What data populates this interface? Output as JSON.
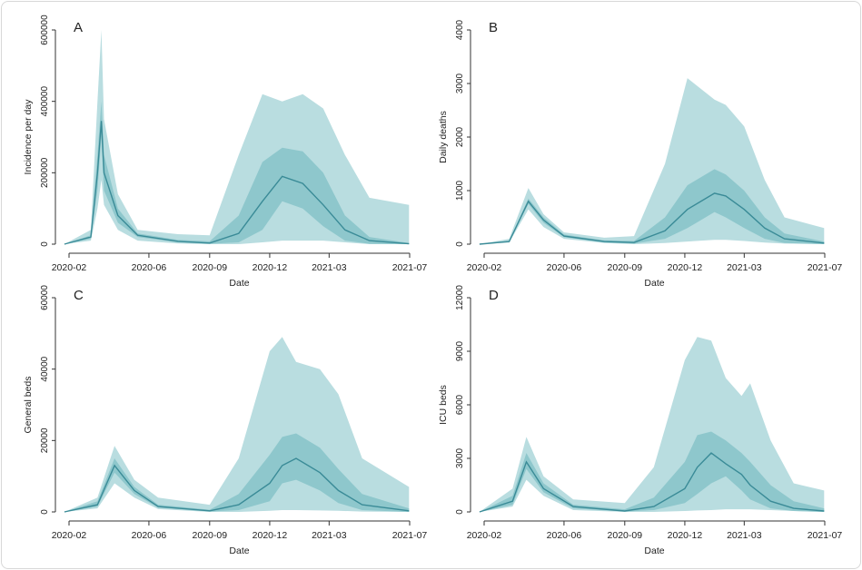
{
  "colors": {
    "band95": "#b9dde0",
    "band50": "#8ec7cc",
    "median": "#3a8b97",
    "axis": "#333333"
  },
  "chart_data": [
    {
      "type": "area",
      "panel_label": "A",
      "xlabel": "Date",
      "ylabel": "Incidence per day",
      "ylim": [
        0,
        600000
      ],
      "yticks": [
        "0",
        "200000",
        "400000",
        "600000"
      ],
      "ytick_values": [
        0,
        200000,
        400000,
        600000
      ],
      "xlim": [
        "2020-02-01",
        "2021-07-01"
      ],
      "xticks": [
        "2020-02",
        "2020-06",
        "2020-09",
        "2020-12",
        "2021-03",
        "2021-07"
      ],
      "grid": false,
      "series": {
        "date": [
          "2020-01-25",
          "2020-03-05",
          "2020-03-15",
          "2020-03-21",
          "2020-03-25",
          "2020-04-15",
          "2020-05-15",
          "2020-07-15",
          "2020-09-01",
          "2020-10-15",
          "2020-11-20",
          "2020-12-20",
          "2021-01-20",
          "2021-02-20",
          "2021-03-25",
          "2021-05-01",
          "2021-06-30"
        ],
        "median": [
          0,
          20000,
          200000,
          345000,
          200000,
          80000,
          25000,
          8000,
          3000,
          30000,
          120000,
          190000,
          170000,
          110000,
          40000,
          10000,
          1000
        ],
        "lo50": [
          0,
          15000,
          150000,
          300000,
          150000,
          60000,
          20000,
          5000,
          1000,
          5000,
          40000,
          120000,
          100000,
          50000,
          10000,
          1000,
          0
        ],
        "hi50": [
          0,
          25000,
          250000,
          400000,
          250000,
          100000,
          30000,
          12000,
          8000,
          80000,
          230000,
          270000,
          260000,
          200000,
          80000,
          20000,
          3000
        ],
        "lo95": [
          0,
          10000,
          100000,
          180000,
          110000,
          40000,
          10000,
          2000,
          0,
          0,
          5000,
          10000,
          10000,
          10000,
          5000,
          0,
          0
        ],
        "hi95": [
          0,
          40000,
          400000,
          600000,
          350000,
          140000,
          40000,
          28000,
          25000,
          250000,
          420000,
          400000,
          420000,
          380000,
          250000,
          130000,
          110000
        ]
      }
    },
    {
      "type": "area",
      "panel_label": "B",
      "xlabel": "Date",
      "ylabel": "Daily deaths",
      "ylim": [
        0,
        4000
      ],
      "yticks": [
        "0",
        "1000",
        "2000",
        "3000",
        "4000"
      ],
      "ytick_values": [
        0,
        1000,
        2000,
        3000,
        4000
      ],
      "xlim": [
        "2020-02-01",
        "2021-07-01"
      ],
      "xticks": [
        "2020-02",
        "2020-06",
        "2020-09",
        "2020-12",
        "2021-03",
        "2021-07"
      ],
      "grid": false,
      "series": {
        "date": [
          "2020-01-25",
          "2020-03-10",
          "2020-04-08",
          "2020-05-01",
          "2020-06-01",
          "2020-08-01",
          "2020-09-15",
          "2020-11-01",
          "2020-12-05",
          "2021-01-15",
          "2021-02-01",
          "2021-03-01",
          "2021-04-01",
          "2021-05-01",
          "2021-06-30"
        ],
        "median": [
          0,
          50,
          800,
          450,
          150,
          50,
          30,
          250,
          650,
          950,
          900,
          650,
          300,
          100,
          20
        ],
        "lo50": [
          0,
          40,
          750,
          400,
          130,
          30,
          10,
          100,
          300,
          600,
          500,
          300,
          100,
          20,
          0
        ],
        "hi50": [
          0,
          60,
          850,
          500,
          180,
          70,
          60,
          500,
          1100,
          1400,
          1300,
          1000,
          500,
          200,
          50
        ],
        "lo95": [
          0,
          30,
          650,
          320,
          100,
          20,
          0,
          20,
          50,
          80,
          80,
          60,
          30,
          10,
          0
        ],
        "hi95": [
          0,
          100,
          1050,
          560,
          220,
          120,
          150,
          1500,
          3100,
          2700,
          2600,
          2200,
          1200,
          500,
          300
        ]
      }
    },
    {
      "type": "area",
      "panel_label": "C",
      "xlabel": "Date",
      "ylabel": "General beds",
      "ylim": [
        0,
        60000
      ],
      "yticks": [
        "0",
        "20000",
        "40000",
        "60000"
      ],
      "ytick_values": [
        0,
        20000,
        40000,
        60000
      ],
      "xlim": [
        "2020-02-01",
        "2021-07-01"
      ],
      "xticks": [
        "2020-02",
        "2020-06",
        "2020-09",
        "2020-12",
        "2021-03",
        "2021-07"
      ],
      "grid": false,
      "series": {
        "date": [
          "2020-01-25",
          "2020-03-15",
          "2020-04-10",
          "2020-05-10",
          "2020-06-15",
          "2020-09-01",
          "2020-10-15",
          "2020-12-01",
          "2020-12-20",
          "2021-01-10",
          "2021-02-15",
          "2021-03-15",
          "2021-04-20",
          "2021-06-30"
        ],
        "median": [
          0,
          2000,
          13000,
          6000,
          1500,
          300,
          2000,
          8000,
          13000,
          15000,
          11000,
          6000,
          2000,
          300
        ],
        "lo50": [
          0,
          1500,
          11000,
          5000,
          1200,
          100,
          500,
          3000,
          8000,
          9000,
          6000,
          2500,
          500,
          0
        ],
        "hi50": [
          0,
          3000,
          15000,
          7000,
          2000,
          600,
          5000,
          16000,
          21000,
          22000,
          18000,
          12000,
          5000,
          1000
        ],
        "lo95": [
          0,
          1000,
          8000,
          4000,
          800,
          0,
          0,
          300,
          500,
          500,
          400,
          300,
          100,
          0
        ],
        "hi95": [
          0,
          4000,
          18500,
          9000,
          4000,
          2000,
          15000,
          45000,
          49000,
          42000,
          40000,
          33000,
          15000,
          7000
        ]
      }
    },
    {
      "type": "area",
      "panel_label": "D",
      "xlabel": "Date",
      "ylabel": "ICU beds",
      "ylim": [
        0,
        12000
      ],
      "yticks": [
        "0",
        "3000",
        "6000",
        "9000",
        "12000"
      ],
      "ytick_values": [
        0,
        3000,
        6000,
        9000,
        12000
      ],
      "xlim": [
        "2020-02-01",
        "2021-07-01"
      ],
      "xticks": [
        "2020-02",
        "2020-06",
        "2020-09",
        "2020-12",
        "2021-03",
        "2021-07"
      ],
      "grid": false,
      "series": {
        "date": [
          "2020-01-25",
          "2020-03-15",
          "2020-04-05",
          "2020-05-01",
          "2020-06-15",
          "2020-09-01",
          "2020-10-15",
          "2020-12-01",
          "2020-12-20",
          "2021-01-10",
          "2021-02-01",
          "2021-02-25",
          "2021-03-10",
          "2021-04-10",
          "2021-05-15",
          "2021-06-30"
        ],
        "median": [
          0,
          600,
          2800,
          1300,
          300,
          50,
          300,
          1300,
          2500,
          3300,
          2700,
          2100,
          1500,
          600,
          200,
          50
        ],
        "lo50": [
          0,
          400,
          2400,
          1100,
          200,
          20,
          100,
          500,
          1000,
          1600,
          2000,
          1200,
          700,
          200,
          50,
          0
        ],
        "hi50": [
          0,
          900,
          3300,
          1600,
          400,
          150,
          800,
          2800,
          4300,
          4500,
          4000,
          3300,
          2800,
          1500,
          600,
          200
        ],
        "lo95": [
          0,
          300,
          1800,
          900,
          100,
          0,
          0,
          50,
          80,
          100,
          150,
          150,
          150,
          100,
          50,
          0
        ],
        "hi95": [
          0,
          1300,
          4200,
          2000,
          700,
          500,
          2500,
          8500,
          9800,
          9600,
          7500,
          6500,
          7200,
          4000,
          1600,
          1200
        ]
      }
    }
  ]
}
